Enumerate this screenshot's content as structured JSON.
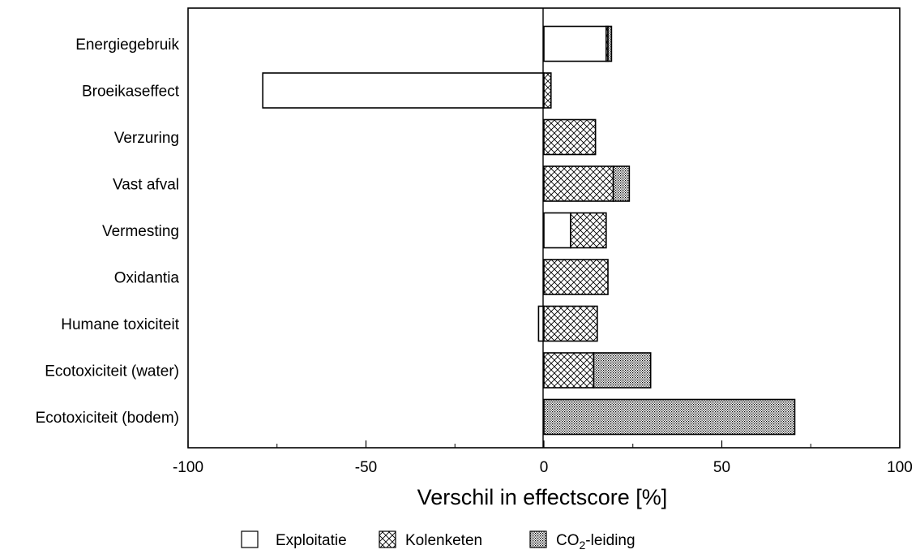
{
  "chart_data": {
    "type": "bar",
    "orientation": "horizontal",
    "stacked": true,
    "categories": [
      "Energiegebruik",
      "Broeikaseffect",
      "Verzuring",
      "Vast afval",
      "Vermesting",
      "Oxidantia",
      "Humane toxiciteit",
      "Ecotoxiciteit (water)",
      "Ecotoxiciteit (bodem)"
    ],
    "series": [
      {
        "name": "Exploitatie",
        "pattern": "none",
        "values": [
          17.5,
          -79,
          0,
          0,
          7.5,
          0,
          -1.5,
          0,
          0
        ]
      },
      {
        "name": "Kolenketen",
        "pattern": "crosshatch",
        "values": [
          0.5,
          2,
          14.5,
          19.5,
          10,
          18,
          15,
          14,
          0
        ]
      },
      {
        "name": "CO2-leiding",
        "pattern": "dotted",
        "values": [
          1,
          0,
          0,
          4.5,
          0,
          0,
          0,
          16,
          70.5
        ]
      }
    ],
    "xlabel": "Verschil in effectscore [%]",
    "xlim": [
      -100,
      100
    ],
    "xticks": [
      "-100",
      "-50",
      "0",
      "50",
      "100"
    ],
    "grid": false,
    "legend_position": "bottom"
  },
  "legend": {
    "items": [
      {
        "label_main": "Exploitatie",
        "label_sub": "",
        "label_tail": ""
      },
      {
        "label_main": "Kolenketen",
        "label_sub": "",
        "label_tail": ""
      },
      {
        "label_main": "CO",
        "label_sub": "2",
        "label_tail": "-leiding"
      }
    ]
  }
}
